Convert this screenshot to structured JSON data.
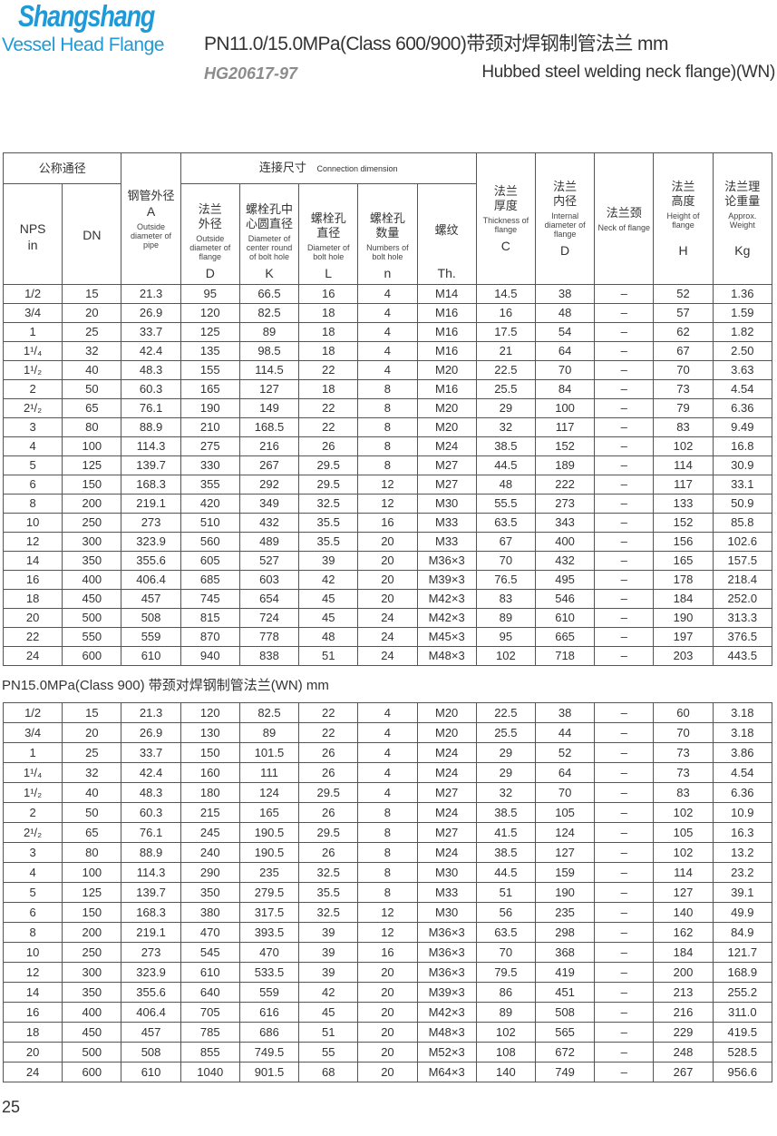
{
  "header": {
    "logo_line1": "Shangshang",
    "logo_line2": "Vessel Head Flange",
    "title": "PN11.0/15.0MPa(Class 600/900)带颈对焊钢制管法兰  mm",
    "standard": "HG20617-97",
    "subtitle": "Hubbed steel welding neck flange)(WN)",
    "brand_color": "#1e9ad8"
  },
  "columns": {
    "nominal": "公称通径",
    "nps": "NPS",
    "nps_unit": "in",
    "dn": "DN",
    "pipe_cn": "钢管外径",
    "pipe_sym": "A",
    "pipe_en": "Outside diameter of pipe",
    "conn_cn": "连接尺寸",
    "conn_en": "Connection dimension",
    "flange_od_cn": "法兰外径",
    "flange_od_en": "Outside diameter of flange",
    "flange_od_sym": "D",
    "bolt_circle_cn": "螺栓孔中心圆直径",
    "bolt_circle_en": "Diameter of center round of bolt hole",
    "bolt_circle_sym": "K",
    "bolt_hole_cn": "螺栓孔直径",
    "bolt_hole_en": "Diameter of bolt hole",
    "bolt_hole_sym": "L",
    "bolt_num_cn": "螺栓孔数量",
    "bolt_num_en": "Numbers of bolt hole",
    "bolt_num_sym": "n",
    "thread_cn": "螺纹",
    "thread_sym": "Th.",
    "thick_cn": "法兰厚度",
    "thick_en": "Thickness of flange",
    "thick_sym": "C",
    "inner_cn": "法兰内径",
    "inner_en": "Internal diameter of flange",
    "inner_sym": "D",
    "neck_cn": "法兰颈",
    "neck_en": "Neck of flange",
    "height_cn": "法兰高度",
    "height_en": "Height of flange",
    "height_sym": "H",
    "weight_cn": "法兰理论重量",
    "weight_en": "Approx. Weight",
    "weight_sym": "Kg"
  },
  "table1_rows": [
    [
      "1/2",
      "15",
      "21.3",
      "95",
      "66.5",
      "16",
      "4",
      "M14",
      "14.5",
      "38",
      "–",
      "52",
      "1.36"
    ],
    [
      "3/4",
      "20",
      "26.9",
      "120",
      "82.5",
      "18",
      "4",
      "M16",
      "16",
      "48",
      "–",
      "57",
      "1.59"
    ],
    [
      "1",
      "25",
      "33.7",
      "125",
      "89",
      "18",
      "4",
      "M16",
      "17.5",
      "54",
      "–",
      "62",
      "1.82"
    ],
    [
      "1¹/₄",
      "32",
      "42.4",
      "135",
      "98.5",
      "18",
      "4",
      "M16",
      "21",
      "64",
      "–",
      "67",
      "2.50"
    ],
    [
      "1¹/₂",
      "40",
      "48.3",
      "155",
      "114.5",
      "22",
      "4",
      "M20",
      "22.5",
      "70",
      "–",
      "70",
      "3.63"
    ],
    [
      "2",
      "50",
      "60.3",
      "165",
      "127",
      "18",
      "8",
      "M16",
      "25.5",
      "84",
      "–",
      "73",
      "4.54"
    ],
    [
      "2¹/₂",
      "65",
      "76.1",
      "190",
      "149",
      "22",
      "8",
      "M20",
      "29",
      "100",
      "–",
      "79",
      "6.36"
    ],
    [
      "3",
      "80",
      "88.9",
      "210",
      "168.5",
      "22",
      "8",
      "M20",
      "32",
      "117",
      "–",
      "83",
      "9.49"
    ],
    [
      "4",
      "100",
      "114.3",
      "275",
      "216",
      "26",
      "8",
      "M24",
      "38.5",
      "152",
      "–",
      "102",
      "16.8"
    ],
    [
      "5",
      "125",
      "139.7",
      "330",
      "267",
      "29.5",
      "8",
      "M27",
      "44.5",
      "189",
      "–",
      "114",
      "30.9"
    ],
    [
      "6",
      "150",
      "168.3",
      "355",
      "292",
      "29.5",
      "12",
      "M27",
      "48",
      "222",
      "–",
      "117",
      "33.1"
    ],
    [
      "8",
      "200",
      "219.1",
      "420",
      "349",
      "32.5",
      "12",
      "M30",
      "55.5",
      "273",
      "–",
      "133",
      "50.9"
    ],
    [
      "10",
      "250",
      "273",
      "510",
      "432",
      "35.5",
      "16",
      "M33",
      "63.5",
      "343",
      "–",
      "152",
      "85.8"
    ],
    [
      "12",
      "300",
      "323.9",
      "560",
      "489",
      "35.5",
      "20",
      "M33",
      "67",
      "400",
      "–",
      "156",
      "102.6"
    ],
    [
      "14",
      "350",
      "355.6",
      "605",
      "527",
      "39",
      "20",
      "M36×3",
      "70",
      "432",
      "–",
      "165",
      "157.5"
    ],
    [
      "16",
      "400",
      "406.4",
      "685",
      "603",
      "42",
      "20",
      "M39×3",
      "76.5",
      "495",
      "–",
      "178",
      "218.4"
    ],
    [
      "18",
      "450",
      "457",
      "745",
      "654",
      "45",
      "20",
      "M42×3",
      "83",
      "546",
      "–",
      "184",
      "252.0"
    ],
    [
      "20",
      "500",
      "508",
      "815",
      "724",
      "45",
      "24",
      "M42×3",
      "89",
      "610",
      "–",
      "190",
      "313.3"
    ],
    [
      "22",
      "550",
      "559",
      "870",
      "778",
      "48",
      "24",
      "M45×3",
      "95",
      "665",
      "–",
      "197",
      "376.5"
    ],
    [
      "24",
      "600",
      "610",
      "940",
      "838",
      "51",
      "24",
      "M48×3",
      "102",
      "718",
      "–",
      "203",
      "443.5"
    ]
  ],
  "section2_title": "PN15.0MPa(Class 900) 带颈对焊钢制管法兰(WN)  mm",
  "table2_rows": [
    [
      "1/2",
      "15",
      "21.3",
      "120",
      "82.5",
      "22",
      "4",
      "M20",
      "22.5",
      "38",
      "–",
      "60",
      "3.18"
    ],
    [
      "3/4",
      "20",
      "26.9",
      "130",
      "89",
      "22",
      "4",
      "M20",
      "25.5",
      "44",
      "–",
      "70",
      "3.18"
    ],
    [
      "1",
      "25",
      "33.7",
      "150",
      "101.5",
      "26",
      "4",
      "M24",
      "29",
      "52",
      "–",
      "73",
      "3.86"
    ],
    [
      "1¹/₄",
      "32",
      "42.4",
      "160",
      "111",
      "26",
      "4",
      "M24",
      "29",
      "64",
      "–",
      "73",
      "4.54"
    ],
    [
      "1¹/₂",
      "40",
      "48.3",
      "180",
      "124",
      "29.5",
      "4",
      "M27",
      "32",
      "70",
      "–",
      "83",
      "6.36"
    ],
    [
      "2",
      "50",
      "60.3",
      "215",
      "165",
      "26",
      "8",
      "M24",
      "38.5",
      "105",
      "–",
      "102",
      "10.9"
    ],
    [
      "2¹/₂",
      "65",
      "76.1",
      "245",
      "190.5",
      "29.5",
      "8",
      "M27",
      "41.5",
      "124",
      "–",
      "105",
      "16.3"
    ],
    [
      "3",
      "80",
      "88.9",
      "240",
      "190.5",
      "26",
      "8",
      "M24",
      "38.5",
      "127",
      "–",
      "102",
      "13.2"
    ],
    [
      "4",
      "100",
      "114.3",
      "290",
      "235",
      "32.5",
      "8",
      "M30",
      "44.5",
      "159",
      "–",
      "114",
      "23.2"
    ],
    [
      "5",
      "125",
      "139.7",
      "350",
      "279.5",
      "35.5",
      "8",
      "M33",
      "51",
      "190",
      "–",
      "127",
      "39.1"
    ],
    [
      "6",
      "150",
      "168.3",
      "380",
      "317.5",
      "32.5",
      "12",
      "M30",
      "56",
      "235",
      "–",
      "140",
      "49.9"
    ],
    [
      "8",
      "200",
      "219.1",
      "470",
      "393.5",
      "39",
      "12",
      "M36×3",
      "63.5",
      "298",
      "–",
      "162",
      "84.9"
    ],
    [
      "10",
      "250",
      "273",
      "545",
      "470",
      "39",
      "16",
      "M36×3",
      "70",
      "368",
      "–",
      "184",
      "121.7"
    ],
    [
      "12",
      "300",
      "323.9",
      "610",
      "533.5",
      "39",
      "20",
      "M36×3",
      "79.5",
      "419",
      "–",
      "200",
      "168.9"
    ],
    [
      "14",
      "350",
      "355.6",
      "640",
      "559",
      "42",
      "20",
      "M39×3",
      "86",
      "451",
      "–",
      "213",
      "255.2"
    ],
    [
      "16",
      "400",
      "406.4",
      "705",
      "616",
      "45",
      "20",
      "M42×3",
      "89",
      "508",
      "–",
      "216",
      "311.0"
    ],
    [
      "18",
      "450",
      "457",
      "785",
      "686",
      "51",
      "20",
      "M48×3",
      "102",
      "565",
      "–",
      "229",
      "419.5"
    ],
    [
      "20",
      "500",
      "508",
      "855",
      "749.5",
      "55",
      "20",
      "M52×3",
      "108",
      "672",
      "–",
      "248",
      "528.5"
    ],
    [
      "24",
      "600",
      "610",
      "1040",
      "901.5",
      "68",
      "20",
      "M64×3",
      "140",
      "749",
      "–",
      "267",
      "956.6"
    ]
  ],
  "page_number": "25"
}
